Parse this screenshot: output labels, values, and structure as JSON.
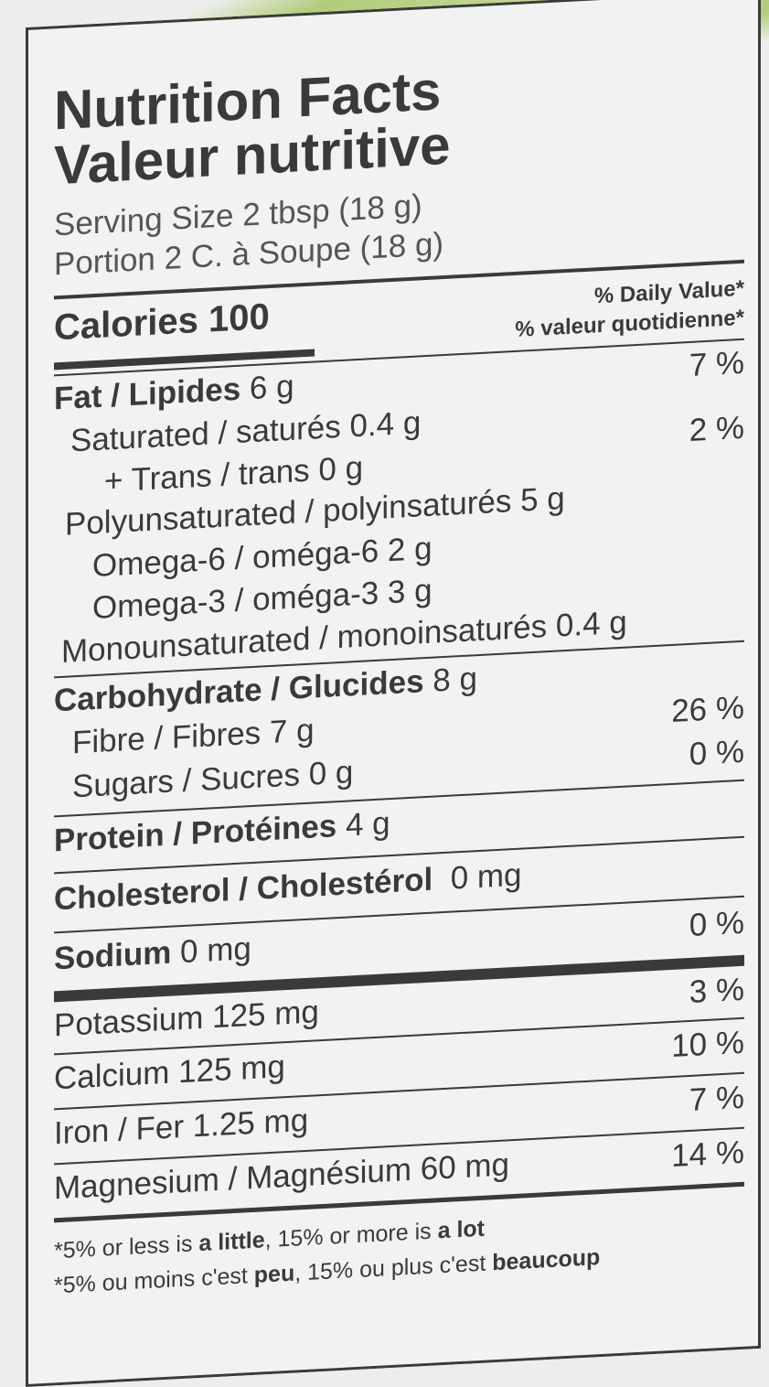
{
  "title_en": "Nutrition Facts",
  "title_fr": "Valeur nutritive",
  "serving_en": "Serving Size 2 tbsp (18 g)",
  "serving_fr": "Portion 2 C. à Soupe (18 g)",
  "calories_label": "Calories 100",
  "dv_en": "% Daily Value*",
  "dv_fr": "% valeur quotidienne*",
  "rows": [
    {
      "label": "Fat / Lipides",
      "amount": " 6 g",
      "dv": "7 %"
    },
    {
      "label": "Saturated / saturés 0.4 g",
      "dv": "2 %"
    },
    {
      "label": "+ Trans / trans 0 g"
    },
    {
      "label": "Polyunsaturated / polyinsaturés 5 g"
    },
    {
      "label": "Omega-6 / oméga-6  2 g"
    },
    {
      "label": "Omega-3 / oméga-3  3 g"
    },
    {
      "label": "Monounsaturated / monoinsaturés 0.4 g"
    },
    {
      "label": "Carbohydrate / Glucides",
      "amount": " 8 g"
    },
    {
      "label": "Fibre / Fibres 7 g",
      "dv": "26 %"
    },
    {
      "label": "Sugars / Sucres 0 g",
      "dv": "0 %"
    },
    {
      "label": "Protein / Protéines",
      "amount": " 4 g"
    },
    {
      "label": "Cholesterol / Cholestérol",
      "amount": "  0 mg"
    },
    {
      "label": "Sodium",
      "amount": " 0 mg",
      "dv": "0 %"
    },
    {
      "label": "Potassium 125 mg",
      "dv": "3 %"
    },
    {
      "label": "Calcium 125 mg",
      "dv": "10 %"
    },
    {
      "label": "Iron / Fer 1.25 mg",
      "dv": "7 %"
    },
    {
      "label": "Magnesium / Magnésium 60 mg",
      "dv": "14 %"
    }
  ],
  "footnote_en": {
    "a": "*5% or less is ",
    "b": "a little",
    "c": ", 15% or more is ",
    "d": "a lot"
  },
  "footnote_fr": {
    "a": "*5% ou moins c'est ",
    "b": "peu",
    "c": ", 15% ou plus c'est ",
    "d": "beaucoup"
  }
}
